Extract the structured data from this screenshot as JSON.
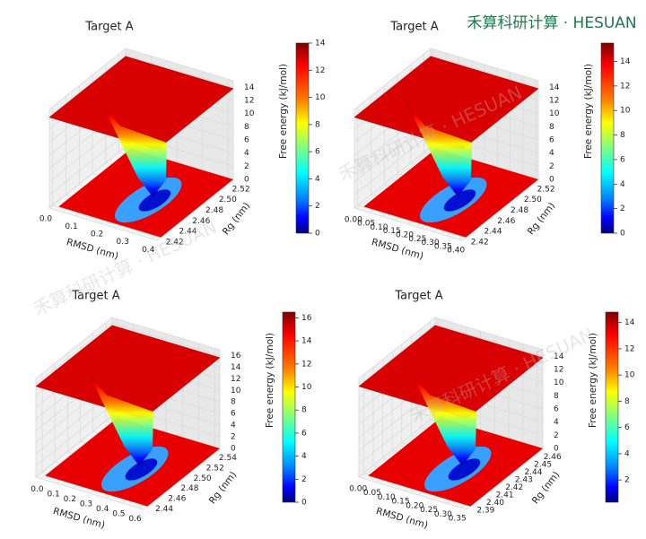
{
  "brand": "禾算科研计算 · HESUAN",
  "chart_data": [
    {
      "type": "surface3d",
      "title": "Target A",
      "xlabel": "RMSD (nm)",
      "ylabel": "Rg (nm)",
      "colorbar_label": "Free energy (kJ/mol)",
      "xlim": [
        0,
        0.42
      ],
      "ylim": [
        2.415,
        2.53
      ],
      "zlim": [
        0,
        15
      ],
      "xticks": [
        {
          "value": 0,
          "label": "0.0"
        },
        0.1,
        0.2,
        0.3,
        0.4
      ],
      "yticks": [
        2.42,
        2.44,
        2.46,
        2.48,
        {
          "value": 2.5,
          "label": "2.50"
        },
        2.52
      ],
      "zticks": [
        0,
        2,
        4,
        6,
        8,
        10,
        12,
        14
      ],
      "clim": [
        0,
        14
      ],
      "cticks": [
        0,
        2,
        4,
        6,
        8,
        10,
        12,
        14
      ]
    },
    {
      "type": "surface3d",
      "title": "Target A",
      "xlabel": "RMSD (nm)",
      "ylabel": "Rg (nm)",
      "colorbar_label": "Free energy (kJ/mol)",
      "xlim": [
        -0.01,
        0.41
      ],
      "ylim": [
        2.415,
        2.53
      ],
      "zlim": [
        0,
        15
      ],
      "xticks": [
        {
          "value": 0,
          "label": "0.00"
        },
        0.05,
        {
          "value": 0.1,
          "label": "0.10"
        },
        0.15,
        {
          "value": 0.2,
          "label": "0.20"
        },
        0.25,
        {
          "value": 0.3,
          "label": "0.30"
        },
        0.35,
        {
          "value": 0.4,
          "label": "0.40"
        }
      ],
      "yticks": [
        2.42,
        2.44,
        2.46,
        2.48,
        {
          "value": 2.5,
          "label": "2.50"
        },
        2.52
      ],
      "zticks": [
        0,
        2,
        4,
        6,
        8,
        10,
        12,
        14
      ],
      "clim": [
        0,
        15.5
      ],
      "cticks": [
        0,
        2,
        4,
        6,
        8,
        10,
        12,
        14
      ]
    },
    {
      "type": "surface3d",
      "title": "Target A",
      "xlabel": "RMSD (nm)",
      "ylabel": "Rg (nm)",
      "colorbar_label": "Free energy (kJ/mol)",
      "xlim": [
        -0.03,
        0.63
      ],
      "ylim": [
        2.43,
        2.55
      ],
      "zlim": [
        0,
        17
      ],
      "xticks": [
        {
          "value": 0,
          "label": "0.0"
        },
        0.1,
        0.2,
        0.3,
        0.4,
        0.5,
        0.6
      ],
      "yticks": [
        2.44,
        2.46,
        2.48,
        {
          "value": 2.5,
          "label": "2.50"
        },
        2.52,
        2.54
      ],
      "zticks": [
        0,
        2,
        4,
        6,
        8,
        10,
        12,
        14,
        16
      ],
      "clim": [
        0,
        16.5
      ],
      "cticks": [
        0,
        2,
        4,
        6,
        8,
        10,
        12,
        14,
        16
      ]
    },
    {
      "type": "surface3d",
      "title": "Target A",
      "xlabel": "RMSD (nm)",
      "ylabel": "Rg (nm)",
      "colorbar_label": "Free energy (kJ/mol)",
      "xlim": [
        -0.01,
        0.37
      ],
      "ylim": [
        2.385,
        2.465
      ],
      "zlim": [
        0,
        15
      ],
      "xticks": [
        {
          "value": 0,
          "label": "0.00"
        },
        0.05,
        {
          "value": 0.1,
          "label": "0.10"
        },
        0.15,
        {
          "value": 0.2,
          "label": "0.20"
        },
        0.25,
        {
          "value": 0.3,
          "label": "0.30"
        },
        0.35
      ],
      "yticks": [
        2.39,
        {
          "value": 2.4,
          "label": "2.40"
        },
        2.41,
        2.42,
        2.43,
        2.44,
        2.45,
        2.46
      ],
      "zticks": [
        0,
        2,
        4,
        6,
        8,
        10,
        12,
        14
      ],
      "clim": [
        0.3,
        14.8
      ],
      "cticks": [
        2,
        4,
        6,
        8,
        10,
        12,
        14
      ]
    }
  ]
}
